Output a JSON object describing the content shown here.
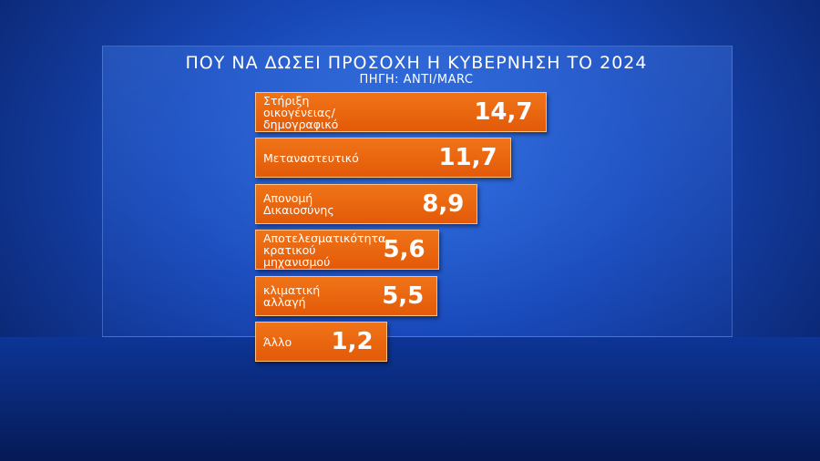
{
  "chart_data": {
    "type": "bar",
    "orientation": "horizontal",
    "title": "ΠΟΥ ΝΑ ΔΩΣΕΙ ΠΡΟΣΟΧΗ Η ΚΥΒΕΡΝΗΣΗ ΤΟ 2024",
    "subtitle": "ΠΗΓΗ: ANTI/MARC",
    "categories": [
      "Στήριξη\nοικογένειας/\nδημογραφικό",
      "Μεταναστευτικό",
      "Απονομή\nΔικαιοσύνης",
      "Αποτελεσματικότητα\nκρατικού\nμηχανισμού",
      "κλιματική\nαλλαγή",
      "Άλλο"
    ],
    "values": [
      14.7,
      11.7,
      8.9,
      5.6,
      5.5,
      1.2
    ],
    "value_labels": [
      "14,7",
      "11,7",
      "8,9",
      "5,6",
      "5,5",
      "1,2"
    ],
    "color": "#f07418"
  }
}
